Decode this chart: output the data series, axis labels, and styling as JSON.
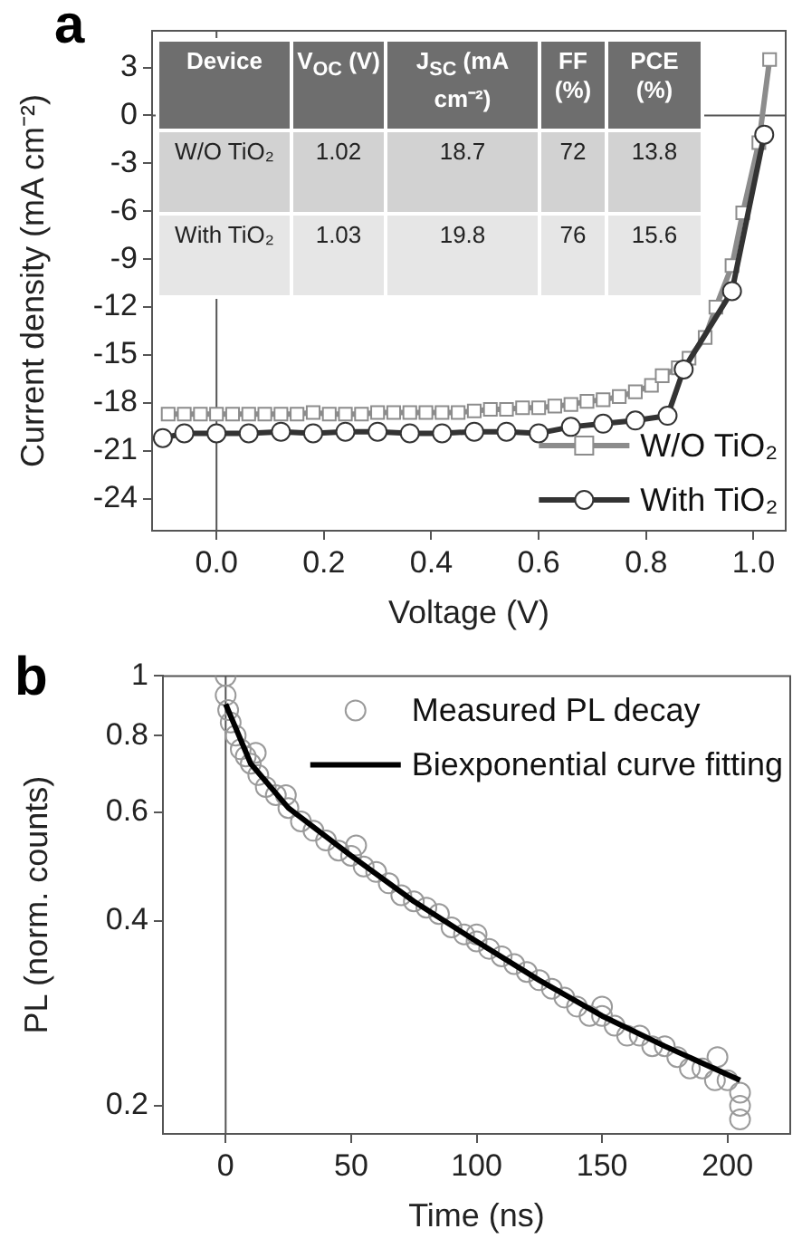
{
  "chart_data": [
    {
      "type": "line",
      "title": "a",
      "xlabel": "Voltage (V)",
      "ylabel": "Current density (mA cm⁻²)",
      "xlim": [
        -0.12,
        1.06
      ],
      "ylim": [
        -26,
        5.3
      ],
      "xticks": [
        {
          "value": 0,
          "label": "0.0"
        },
        {
          "value": 0.2,
          "label": "0.2"
        },
        {
          "value": 0.4,
          "label": "0.4"
        },
        {
          "value": 0.6,
          "label": "0.6"
        },
        {
          "value": 0.8,
          "label": "0.8"
        },
        {
          "value": 1,
          "label": "1.0"
        }
      ],
      "yticks": [
        3,
        0,
        -3,
        -6,
        -9,
        -12,
        -15,
        -18,
        -21,
        -24
      ],
      "legend": "bottom right",
      "ref_lines": [
        {
          "axis": "x",
          "value": 0
        },
        {
          "axis": "y",
          "value": 0
        }
      ],
      "series": [
        {
          "name": "W/O TiO₂",
          "color": "#8c8c8c",
          "marker": "square",
          "x": [
            -0.09,
            -0.06,
            -0.03,
            0,
            0.03,
            0.06,
            0.09,
            0.12,
            0.15,
            0.18,
            0.21,
            0.24,
            0.27,
            0.3,
            0.33,
            0.36,
            0.39,
            0.42,
            0.45,
            0.48,
            0.51,
            0.54,
            0.57,
            0.6,
            0.63,
            0.66,
            0.69,
            0.72,
            0.75,
            0.78,
            0.81,
            0.83,
            0.86,
            0.88,
            0.91,
            0.93,
            0.96,
            0.98,
            1.01,
            1.03
          ],
          "values": [
            -18.7,
            -18.7,
            -18.7,
            -18.7,
            -18.7,
            -18.7,
            -18.7,
            -18.7,
            -18.7,
            -18.6,
            -18.7,
            -18.7,
            -18.7,
            -18.6,
            -18.6,
            -18.6,
            -18.6,
            -18.6,
            -18.6,
            -18.5,
            -18.4,
            -18.4,
            -18.3,
            -18.3,
            -18.2,
            -18.1,
            -17.9,
            -17.8,
            -17.6,
            -17.3,
            -16.9,
            -16.3,
            -15.8,
            -15.2,
            -13.9,
            -12,
            -9.4,
            -6.1,
            -1.7,
            3.5
          ]
        },
        {
          "name": "With TiO₂",
          "color": "#333333",
          "marker": "circle",
          "x": [
            -0.1,
            -0.06,
            0,
            0.06,
            0.12,
            0.18,
            0.24,
            0.3,
            0.36,
            0.42,
            0.48,
            0.54,
            0.6,
            0.66,
            0.72,
            0.78,
            0.84,
            0.87,
            0.96,
            1.02
          ],
          "values": [
            -20.2,
            -19.9,
            -19.9,
            -19.9,
            -19.8,
            -19.9,
            -19.8,
            -19.8,
            -19.9,
            -19.9,
            -19.8,
            -19.8,
            -19.9,
            -19.5,
            -19.3,
            -19.1,
            -18.8,
            -15.9,
            -11,
            -1.2
          ]
        }
      ]
    },
    {
      "type": "heatmap",
      "data_labels": true,
      "annotations": [
        "Device"
      ],
      "categories": [
        "V$_{OC}$ (V)",
        "J$_{SC}$ (mA cm⁻²)",
        "FF (%)",
        "PCE (%)"
      ],
      "y_categories": [
        "W/O TiO₂",
        "With TiO₂"
      ],
      "cells": [
        [
          1.02,
          18.7,
          72,
          13.8
        ],
        [
          1.03,
          19.8,
          76,
          15.6
        ]
      ]
    },
    {
      "type": "scatter",
      "title": "b",
      "xlabel": "Time (ns)",
      "ylabel": "PL (norm. counts)",
      "log": "y",
      "xlim": [
        -25,
        225
      ],
      "ylim": [
        0.18,
        1
      ],
      "xticks": [
        0,
        50,
        100,
        150,
        200
      ],
      "yticks": [
        1,
        0.8,
        0.6,
        0.4,
        0.2
      ],
      "legend": "top right",
      "ref_lines": [
        {
          "axis": "x",
          "value": 0
        }
      ],
      "series": [
        {
          "name": "Measured PL decay",
          "type": "scatter",
          "color": "#9a9a9a",
          "marker": "circle",
          "x": [
            0,
            0,
            1,
            2,
            4,
            6,
            8,
            10,
            12,
            13,
            16,
            20,
            24,
            25,
            30,
            35,
            40,
            45,
            50,
            52,
            55,
            60,
            65,
            70,
            75,
            80,
            85,
            90,
            95,
            100,
            100,
            105,
            110,
            115,
            120,
            125,
            130,
            135,
            140,
            145,
            150,
            150,
            155,
            160,
            165,
            170,
            175,
            180,
            185,
            190,
            195,
            196,
            200,
            205,
            205,
            205
          ],
          "values": [
            1,
            0.93,
            0.88,
            0.84,
            0.8,
            0.76,
            0.74,
            0.72,
            0.75,
            0.69,
            0.66,
            0.64,
            0.64,
            0.61,
            0.58,
            0.56,
            0.54,
            0.52,
            0.51,
            0.53,
            0.49,
            0.48,
            0.46,
            0.44,
            0.43,
            0.42,
            0.41,
            0.39,
            0.38,
            0.37,
            0.38,
            0.36,
            0.35,
            0.34,
            0.33,
            0.32,
            0.31,
            0.3,
            0.29,
            0.28,
            0.28,
            0.29,
            0.27,
            0.26,
            0.26,
            0.25,
            0.25,
            0.24,
            0.23,
            0.23,
            0.22,
            0.24,
            0.22,
            0.21,
            0.2,
            0.19
          ]
        },
        {
          "name": "Biexponential curve fitting",
          "type": "line",
          "color": "#000000",
          "marker": "none",
          "x": [
            0,
            10,
            25,
            50,
            75,
            100,
            125,
            150,
            175,
            205
          ],
          "values": [
            0.9,
            0.72,
            0.61,
            0.51,
            0.43,
            0.37,
            0.32,
            0.28,
            0.25,
            0.22
          ]
        }
      ]
    }
  ]
}
